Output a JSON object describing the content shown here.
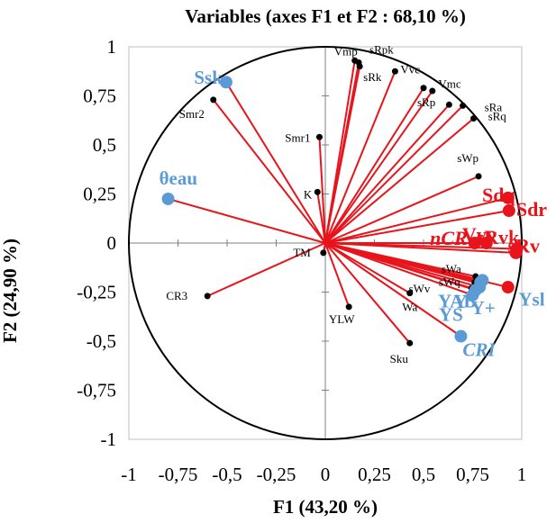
{
  "chart_data": {
    "type": "scatter",
    "title": "Variables (axes F1 et F2 : 68,10 %)",
    "xlabel": "F1 (43,20 %)",
    "ylabel": "F2 (24,90 %)",
    "xlim": [
      -1,
      1
    ],
    "ylim": [
      -1,
      1
    ],
    "x_ticks": [
      "-1",
      "-0,75",
      "-0,5",
      "-0,25",
      "0",
      "0,25",
      "0,5",
      "0,75",
      "1"
    ],
    "y_ticks": [
      "1",
      "0,75",
      "0,5",
      "0,25",
      "0",
      "-0,25",
      "-0,5",
      "-0,75",
      "-1"
    ],
    "correlation_circle": true,
    "colors": {
      "vector": "#e8141b",
      "highlight_red": "#e8141b",
      "highlight_blue": "#5b9bd5",
      "point_black": "#000000"
    },
    "points": [
      {
        "name": "Ssk",
        "x": -0.505,
        "y": 0.82,
        "group": "blue"
      },
      {
        "name": "θeau",
        "x": -0.8,
        "y": 0.225,
        "group": "blue"
      },
      {
        "name": "Smr2",
        "x": -0.57,
        "y": 0.73,
        "group": "black"
      },
      {
        "name": "Smr1",
        "x": -0.03,
        "y": 0.54,
        "group": "black"
      },
      {
        "name": "K",
        "x": -0.04,
        "y": 0.26,
        "group": "black"
      },
      {
        "name": "TM",
        "x": -0.01,
        "y": -0.05,
        "group": "black"
      },
      {
        "name": "CR3",
        "x": -0.6,
        "y": -0.27,
        "group": "black"
      },
      {
        "name": "YLW",
        "x": 0.12,
        "y": -0.325,
        "group": "black"
      },
      {
        "name": "Sku",
        "x": 0.43,
        "y": -0.51,
        "group": "black"
      },
      {
        "name": "Wa",
        "x": 0.43,
        "y": -0.255,
        "group": "black"
      },
      {
        "name": "Vmp",
        "x": 0.15,
        "y": 0.93,
        "group": "black"
      },
      {
        "name": "sRpk",
        "x": 0.17,
        "y": 0.92,
        "group": "black"
      },
      {
        "name": "sRk",
        "x": 0.175,
        "y": 0.9,
        "group": "black"
      },
      {
        "name": "Vvc",
        "x": 0.355,
        "y": 0.875,
        "group": "black"
      },
      {
        "name": "Vmc",
        "x": 0.63,
        "y": 0.705,
        "group": "black"
      },
      {
        "name": "sRp",
        "x": 0.5,
        "y": 0.79,
        "group": "black"
      },
      {
        "name": "sRp",
        "x": 0.545,
        "y": 0.775,
        "group": "black"
      },
      {
        "name": "sRa",
        "x": 0.7,
        "y": 0.7,
        "group": "black"
      },
      {
        "name": "sRq",
        "x": 0.755,
        "y": 0.635,
        "group": "black"
      },
      {
        "name": "sWp",
        "x": 0.78,
        "y": 0.34,
        "group": "black"
      },
      {
        "name": "sWa",
        "x": 0.765,
        "y": -0.17,
        "group": "black"
      },
      {
        "name": "sWq",
        "x": 0.76,
        "y": -0.2,
        "group": "black"
      },
      {
        "name": "sWv",
        "x": 0.745,
        "y": -0.23,
        "group": "black"
      },
      {
        "name": "Sdq",
        "x": 0.93,
        "y": 0.23,
        "group": "red"
      },
      {
        "name": "Sdr",
        "x": 0.935,
        "y": 0.165,
        "group": "red"
      },
      {
        "name": "nCR",
        "x": 0.76,
        "y": 0.0,
        "group": "red"
      },
      {
        "name": "Vvv",
        "x": 0.82,
        "y": 0.0,
        "group": "red"
      },
      {
        "name": "sRv",
        "x": 0.975,
        "y": -0.03,
        "group": "red"
      },
      {
        "name": "sRvk",
        "x": 0.97,
        "y": -0.05,
        "group": "red"
      },
      {
        "name": "",
        "x": 0.93,
        "y": -0.225,
        "group": "red"
      },
      {
        "name": "Y",
        "x": 0.75,
        "y": -0.265,
        "group": "blue"
      },
      {
        "name": "YAB",
        "x": 0.79,
        "y": -0.2,
        "group": "blue"
      },
      {
        "name": "YS",
        "x": 0.765,
        "y": -0.24,
        "group": "blue"
      },
      {
        "name": "Y+",
        "x": 0.785,
        "y": -0.225,
        "group": "blue"
      },
      {
        "name": "Ysl",
        "x": 0.8,
        "y": -0.19,
        "group": "blue"
      },
      {
        "name": "CRI",
        "x": 0.69,
        "y": -0.475,
        "group": "blue"
      }
    ],
    "labels": [
      {
        "text": "Ssk",
        "x": -0.505,
        "y": 0.82,
        "style": "blue",
        "anchor": "end",
        "dx": -4,
        "dy": 2
      },
      {
        "text": "θeau",
        "x": -0.8,
        "y": 0.225,
        "style": "blue",
        "anchor": "start",
        "dx": -10,
        "dy": -16
      },
      {
        "text": "Smr2",
        "x": -0.57,
        "y": 0.73,
        "style": "black",
        "anchor": "start",
        "dx": -38,
        "dy": 20
      },
      {
        "text": "Smr1",
        "x": -0.03,
        "y": 0.54,
        "style": "black",
        "anchor": "end",
        "dx": -10,
        "dy": 5
      },
      {
        "text": "K",
        "x": -0.04,
        "y": 0.26,
        "style": "black",
        "anchor": "end",
        "dx": -6,
        "dy": 7
      },
      {
        "text": "TM",
        "x": -0.01,
        "y": -0.05,
        "style": "black",
        "anchor": "end",
        "dx": -14,
        "dy": 4
      },
      {
        "text": "CR3",
        "x": -0.6,
        "y": -0.27,
        "style": "black",
        "anchor": "end",
        "dx": -22,
        "dy": 4
      },
      {
        "text": "YLW",
        "x": 0.12,
        "y": -0.325,
        "style": "black",
        "anchor": "middle",
        "dx": -8,
        "dy": 18
      },
      {
        "text": "Sku",
        "x": 0.43,
        "y": -0.51,
        "style": "black",
        "anchor": "middle",
        "dx": -12,
        "dy": 22
      },
      {
        "text": "Wa",
        "x": 0.43,
        "y": -0.255,
        "style": "black",
        "anchor": "middle",
        "dx": 0,
        "dy": 20
      },
      {
        "text": "sWv",
        "x": 0.745,
        "y": -0.23,
        "style": "black",
        "anchor": "end",
        "dx": -46,
        "dy": 5
      },
      {
        "text": "sWq",
        "x": 0.76,
        "y": -0.2,
        "style": "black",
        "anchor": "end",
        "dx": -16,
        "dy": 4
      },
      {
        "text": "sWa",
        "x": 0.765,
        "y": -0.17,
        "style": "black",
        "anchor": "end",
        "dx": -16,
        "dy": -4
      },
      {
        "text": "Vmp",
        "x": 0.15,
        "y": 0.93,
        "style": "black",
        "anchor": "middle",
        "dx": -10,
        "dy": -6
      },
      {
        "text": "sRpk",
        "x": 0.17,
        "y": 0.92,
        "style": "black",
        "anchor": "start",
        "dx": 12,
        "dy": -10
      },
      {
        "text": "sRk",
        "x": 0.175,
        "y": 0.9,
        "style": "black",
        "anchor": "start",
        "dx": 4,
        "dy": 16
      },
      {
        "text": "Vvc",
        "x": 0.355,
        "y": 0.875,
        "style": "black",
        "anchor": "start",
        "dx": 6,
        "dy": 2
      },
      {
        "text": "Vmc",
        "x": 0.63,
        "y": 0.705,
        "style": "black",
        "anchor": "start",
        "dx": -12,
        "dy": -19
      },
      {
        "text": "sRp",
        "x": 0.5,
        "y": 0.79,
        "style": "black",
        "anchor": "start",
        "dx": -7,
        "dy": 20
      },
      {
        "text": "sRa",
        "x": 0.7,
        "y": 0.7,
        "style": "black",
        "anchor": "start",
        "dx": 24,
        "dy": 6
      },
      {
        "text": "sRq",
        "x": 0.755,
        "y": 0.635,
        "style": "black",
        "anchor": "start",
        "dx": 16,
        "dy": 2
      },
      {
        "text": "sWp",
        "x": 0.78,
        "y": 0.34,
        "style": "black",
        "anchor": "end",
        "dx": 0,
        "dy": -16
      },
      {
        "text": "Sdq",
        "x": 0.93,
        "y": 0.23,
        "style": "red",
        "anchor": "end",
        "dx": 8,
        "dy": 4
      },
      {
        "text": "Sdr",
        "x": 0.935,
        "y": 0.165,
        "style": "red",
        "anchor": "start",
        "dx": 8,
        "dy": 6
      },
      {
        "text": "nCR",
        "x": 0.76,
        "y": 0.0,
        "style": "red-italic",
        "anchor": "end",
        "dx": -8,
        "dy": 2
      },
      {
        "text": "Vvv",
        "x": 0.82,
        "y": 0.0,
        "style": "red",
        "anchor": "middle",
        "dx": -8,
        "dy": -2
      },
      {
        "text": "sRv",
        "x": 0.975,
        "y": -0.03,
        "style": "red",
        "anchor": "start",
        "dx": -10,
        "dy": 4
      },
      {
        "text": "sRvk",
        "x": 0.97,
        "y": -0.05,
        "style": "red",
        "anchor": "middle",
        "dx": -20,
        "dy": -10
      },
      {
        "text": "Y",
        "x": 0.75,
        "y": -0.265,
        "style": "blue",
        "anchor": "end",
        "dx": -6,
        "dy": 14
      },
      {
        "text": "YAB",
        "x": 0.79,
        "y": -0.2,
        "style": "blue",
        "anchor": "middle",
        "dx": -26,
        "dy": 28
      },
      {
        "text": "YS",
        "x": 0.765,
        "y": -0.24,
        "style": "blue",
        "anchor": "end",
        "dx": -14,
        "dy": 34
      },
      {
        "text": "Y+",
        "x": 0.785,
        "y": -0.225,
        "style": "blue",
        "anchor": "middle",
        "dx": 4,
        "dy": 30
      },
      {
        "text": "Ysl",
        "x": 0.8,
        "y": -0.19,
        "style": "blue",
        "anchor": "start",
        "dx": 40,
        "dy": 28
      },
      {
        "text": "CRI",
        "x": 0.69,
        "y": -0.475,
        "style": "blue-italic",
        "anchor": "middle",
        "dx": 20,
        "dy": 22
      }
    ]
  }
}
